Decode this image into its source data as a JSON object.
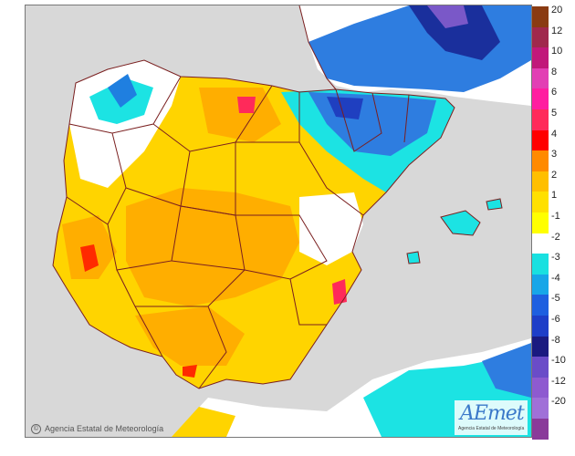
{
  "copyright": {
    "symbol": "©",
    "text": "Agencia Estatal de Meteorología"
  },
  "logo": {
    "brand": "AEmet",
    "subtitle": "Agencia Estatal de Meteorología"
  },
  "colors": {
    "sea": "#d8d8d8",
    "land_neutral": "#ffffff",
    "border_line": "#7a1f1f"
  },
  "legend": {
    "labels": [
      "20",
      "12",
      "10",
      "8",
      "6",
      "5",
      "4",
      "3",
      "2",
      "1",
      "-1",
      "-2",
      "-3",
      "-4",
      "-5",
      "-6",
      "-8",
      "-10",
      "-12",
      "-20"
    ],
    "colors": [
      "#8a3b12",
      "#a0284c",
      "#c1187a",
      "#e23fb4",
      "#ff1ea0",
      "#ff2a5a",
      "#ff0000",
      "#ff8a00",
      "#ffbf00",
      "#ffe000",
      "#ffff00",
      "#ffffff",
      "#19e0e0",
      "#17a6e8",
      "#1e5fe0",
      "#1e3ec8",
      "#1a1a80",
      "#6a4cc8",
      "#8e5ad0",
      "#a070d8",
      "#8a3a9a"
    ]
  }
}
